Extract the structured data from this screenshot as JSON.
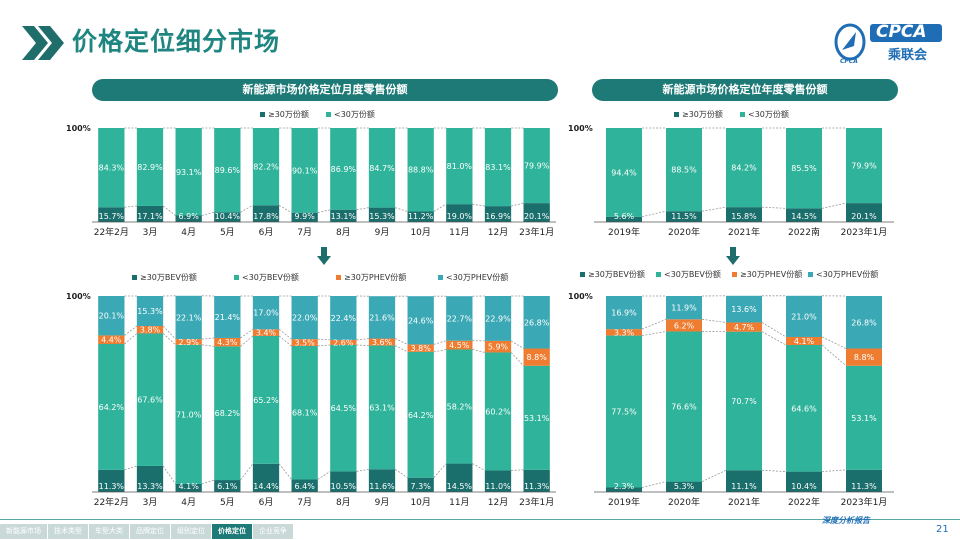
{
  "header": {
    "title": "价格定位细分市场",
    "logo_text": "CPCA",
    "logo_sub": "乘联会",
    "logo_small": "CPCA"
  },
  "colors": {
    "dark_teal": "#1a6e6c",
    "teal": "#2fb39a",
    "orange": "#ee7d31",
    "light_teal": "#3aa8b5",
    "title": "#1f8580",
    "pill": "#1e7a77"
  },
  "footer": {
    "tabs": [
      "新能源市场",
      "技术类型",
      "车型大类",
      "品牌定位",
      "级别定位",
      "价格定位",
      "企业竞争"
    ],
    "active_tab": 5,
    "page_number": "21",
    "brand": "深度分析报告"
  },
  "chart_data": [
    {
      "type": "bar",
      "stacked": true,
      "title": "新能源市场价格定位月度零售份额",
      "categories": [
        "22年2月",
        "3月",
        "4月",
        "5月",
        "6月",
        "7月",
        "8月",
        "9月",
        "10月",
        "11月",
        "12月",
        "23年1月"
      ],
      "series": [
        {
          "name": "≥30万份额",
          "color": "#1a6e6c",
          "values": [
            15.7,
            17.1,
            6.9,
            10.4,
            17.8,
            9.9,
            13.1,
            15.3,
            11.2,
            19.0,
            16.9,
            20.1
          ]
        },
        {
          "name": "<30万份额",
          "color": "#2fb39a",
          "values": [
            84.3,
            82.9,
            93.1,
            89.6,
            82.2,
            90.1,
            86.9,
            84.7,
            88.8,
            81.0,
            83.1,
            79.9
          ]
        }
      ],
      "ytick_top": "100%",
      "ylim": [
        0,
        100
      ],
      "legend": "top"
    },
    {
      "type": "bar",
      "stacked": true,
      "title": "新能源市场价格定位年度零售份额",
      "categories": [
        "2019年",
        "2020年",
        "2021年",
        "2022南",
        "2023年1月"
      ],
      "series": [
        {
          "name": "≥30万份额",
          "color": "#1a6e6c",
          "values": [
            5.6,
            11.5,
            15.8,
            14.5,
            20.1
          ]
        },
        {
          "name": "<30万份额",
          "color": "#2fb39a",
          "values": [
            94.4,
            88.5,
            84.2,
            85.5,
            79.9
          ]
        }
      ],
      "ytick_top": "100%",
      "ylim": [
        0,
        100
      ],
      "legend": "top"
    },
    {
      "type": "bar",
      "stacked": true,
      "categories": [
        "22年2月",
        "3月",
        "4月",
        "5月",
        "6月",
        "7月",
        "8月",
        "9月",
        "10月",
        "11月",
        "12月",
        "23年1月"
      ],
      "series": [
        {
          "name": "≥30万BEV份额",
          "color": "#1a6e6c",
          "values": [
            11.3,
            13.3,
            4.1,
            6.1,
            14.4,
            6.4,
            10.5,
            11.6,
            7.3,
            14.5,
            11.0,
            11.3
          ]
        },
        {
          "name": "<30万BEV份额",
          "color": "#2fb39a",
          "values": [
            64.2,
            67.6,
            71.0,
            68.2,
            65.2,
            68.1,
            64.5,
            63.1,
            64.2,
            58.2,
            60.2,
            53.1
          ]
        },
        {
          "name": "≥30万PHEV份额",
          "color": "#ee7d31",
          "values": [
            4.4,
            3.8,
            2.9,
            4.3,
            3.4,
            3.5,
            2.6,
            3.6,
            3.8,
            4.5,
            5.9,
            8.8
          ]
        },
        {
          "name": "<30万PHEV份额",
          "color": "#3aa8b5",
          "values": [
            20.1,
            15.3,
            22.1,
            21.4,
            17.0,
            22.0,
            22.4,
            21.6,
            24.6,
            22.7,
            22.9,
            26.8
          ]
        }
      ],
      "ytick_top": "100%",
      "ylim": [
        0,
        100
      ],
      "legend": "top"
    },
    {
      "type": "bar",
      "stacked": true,
      "categories": [
        "2019年",
        "2020年",
        "2021年",
        "2022年",
        "2023年1月"
      ],
      "series": [
        {
          "name": "≥30万BEV份额",
          "color": "#1a6e6c",
          "values": [
            2.3,
            5.3,
            11.1,
            10.4,
            11.3
          ]
        },
        {
          "name": "<30万BEV份额",
          "color": "#2fb39a",
          "values": [
            77.5,
            76.6,
            70.7,
            64.6,
            53.1
          ]
        },
        {
          "name": "≥30万PHEV份额",
          "color": "#ee7d31",
          "values": [
            3.3,
            6.2,
            4.7,
            4.1,
            8.8
          ]
        },
        {
          "name": "<30万PHEV份额",
          "color": "#3aa8b5",
          "values": [
            16.9,
            11.9,
            13.6,
            21.0,
            26.8
          ]
        }
      ],
      "ytick_top": "100%",
      "ylim": [
        0,
        100
      ],
      "legend": "top"
    }
  ]
}
